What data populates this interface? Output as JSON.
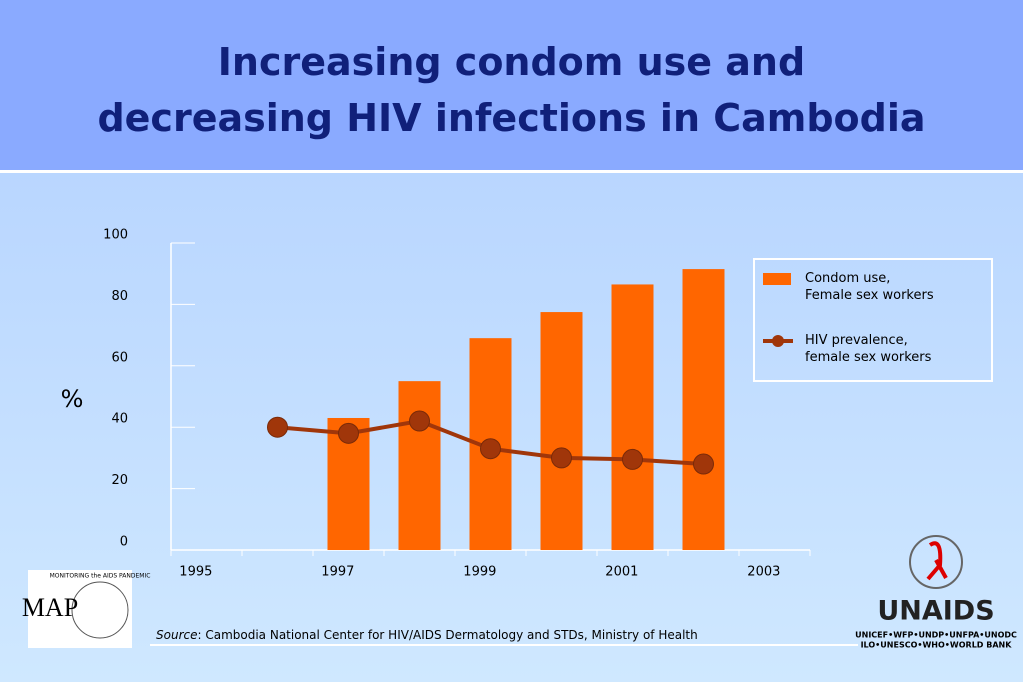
{
  "chart_data": {
    "type": "bar",
    "title": "Increasing condom use and",
    "title_line2": "decreasing HIV infections in Cambodia",
    "ylabel": "%",
    "categories": [
      "1995",
      null,
      "1997",
      null,
      "1999",
      null,
      "2001",
      null,
      "2003"
    ],
    "series": [
      {
        "name": "Condom use,\nFemale sex workers",
        "type": "bar",
        "color": "#ff6600",
        "values": [
          null,
          null,
          43,
          55,
          69,
          77.5,
          86.5,
          91.5,
          null
        ]
      },
      {
        "name": "HIV prevalence,\nfemale sex workers",
        "type": "line",
        "color": "#a0360a",
        "values": [
          null,
          40,
          38,
          42,
          33,
          30,
          29.5,
          28,
          null
        ]
      }
    ],
    "ylim": [
      0,
      100
    ],
    "yticks": [
      0,
      20,
      40,
      60,
      80,
      100
    ],
    "grid": false,
    "legend": "upper right"
  },
  "source_label": "Source",
  "source": ":  Cambodia National Center for HIV/AIDS Dermatology and STDs, Ministry of Health",
  "logos": {
    "map": "MAP",
    "map_ring": "MONITORING the AIDS PANDEMIC",
    "unaids": "UNAIDS",
    "unaids_line1": "UNICEF•WFP•UNDP•UNFPA•UNODC",
    "unaids_line2": "ILO•UNESCO•WHO•WORLD BANK"
  }
}
